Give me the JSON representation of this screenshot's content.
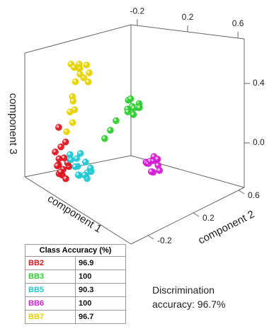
{
  "chart_data": {
    "type": "scatter3d",
    "xlabel": "component 1",
    "ylabel": "component 2",
    "zlabel": "component 3",
    "xlim": [
      -0.25,
      0.65
    ],
    "xticks": [
      -0.2,
      0.2,
      0.6
    ],
    "ylim": [
      -0.35,
      0.65
    ],
    "yticks": [
      -0.2,
      0.2,
      0.6
    ],
    "zlim": [
      -0.3,
      0.7
    ],
    "zticks": [
      {
        "value": 0,
        "label": "0.0"
      },
      0.4
    ],
    "series": [
      {
        "name": "BB2",
        "color": "#e0141e",
        "x": [
          -0.05,
          -0.08,
          -0.1,
          -0.06,
          -0.03,
          -0.09,
          -0.12,
          -0.07,
          -0.04,
          -0.11,
          -0.08,
          -0.06,
          -0.1,
          -0.05,
          -0.09,
          -0.07
        ],
        "y": [
          -0.22,
          -0.18,
          -0.2,
          -0.25,
          -0.21,
          -0.16,
          -0.19,
          -0.23,
          -0.17,
          -0.22,
          -0.2,
          -0.24,
          -0.18,
          -0.19,
          -0.21,
          -0.15
        ],
        "z": [
          -0.2,
          -0.18,
          -0.15,
          -0.12,
          -0.22,
          -0.1,
          -0.17,
          -0.08,
          -0.14,
          -0.05,
          0.0,
          -0.19,
          -0.21,
          0.05,
          0.15,
          -0.13
        ]
      },
      {
        "name": "BB3",
        "color": "#2ecc2e",
        "x": [
          0.24,
          0.27,
          0.22,
          0.25,
          0.2,
          0.28,
          0.23,
          0.26,
          0.21,
          0.25,
          0.3,
          0.18,
          0.16,
          0.14
        ],
        "y": [
          0.1,
          0.13,
          0.08,
          0.15,
          0.11,
          0.07,
          0.16,
          0.09,
          0.12,
          0.05,
          0.1,
          0.02,
          -0.01,
          -0.04
        ],
        "z": [
          0.35,
          0.37,
          0.33,
          0.34,
          0.38,
          0.36,
          0.32,
          0.3,
          0.39,
          0.33,
          0.36,
          0.25,
          0.18,
          0.12
        ]
      },
      {
        "name": "BB5",
        "color": "#1ec8d2",
        "x": [
          0.0,
          -0.03,
          0.02,
          -0.05,
          0.03,
          -0.01,
          0.05,
          -0.04,
          0.01,
          -0.02,
          0.04,
          -0.06,
          0.02,
          0.0
        ],
        "y": [
          -0.12,
          -0.1,
          -0.15,
          -0.14,
          -0.08,
          -0.05,
          -0.1,
          -0.16,
          -0.02,
          -0.12,
          -0.06,
          -0.09,
          -0.13,
          -0.07
        ],
        "z": [
          -0.2,
          -0.15,
          -0.18,
          -0.1,
          -0.22,
          -0.12,
          -0.16,
          -0.05,
          -0.19,
          -0.08,
          -0.14,
          -0.17,
          -0.02,
          -0.21
        ]
      },
      {
        "name": "BB6",
        "color": "#d21ed2",
        "x": [
          0.4,
          0.36,
          0.33,
          0.3,
          0.28,
          0.26,
          0.34,
          0.31,
          0.29,
          0.25,
          0.38,
          0.32
        ],
        "y": [
          0.05,
          0.1,
          0.15,
          0.2,
          0.25,
          0.3,
          0.18,
          0.22,
          0.28,
          0.32,
          0.12,
          0.26
        ],
        "z": [
          0.02,
          -0.02,
          -0.05,
          -0.06,
          -0.08,
          -0.1,
          -0.12,
          -0.03,
          -0.12,
          -0.1,
          -0.08,
          -0.14
        ]
      },
      {
        "name": "BB7",
        "color": "#e6d200",
        "x": [
          0.0,
          -0.03,
          0.02,
          -0.05,
          0.03,
          -0.01,
          -0.04,
          0.01,
          -0.02,
          0.04,
          -0.06,
          -0.03,
          -0.05,
          -0.02,
          -0.04,
          0.0,
          -0.06
        ],
        "y": [
          -0.12,
          -0.08,
          -0.1,
          -0.14,
          -0.06,
          -0.04,
          -0.11,
          -0.13,
          -0.09,
          -0.08,
          -0.1,
          -0.15,
          -0.12,
          -0.14,
          -0.16,
          -0.18,
          -0.17
        ],
        "z": [
          0.62,
          0.6,
          0.55,
          0.64,
          0.58,
          0.62,
          0.5,
          0.66,
          0.56,
          0.52,
          0.6,
          0.4,
          0.35,
          0.3,
          0.28,
          0.22,
          0.12
        ]
      }
    ],
    "table": {
      "header": "Class Accuracy (%)",
      "values": [
        96.9,
        100,
        90.3,
        100,
        96.7
      ]
    },
    "annotation": "Discrimination accuracy: 96.7%"
  }
}
